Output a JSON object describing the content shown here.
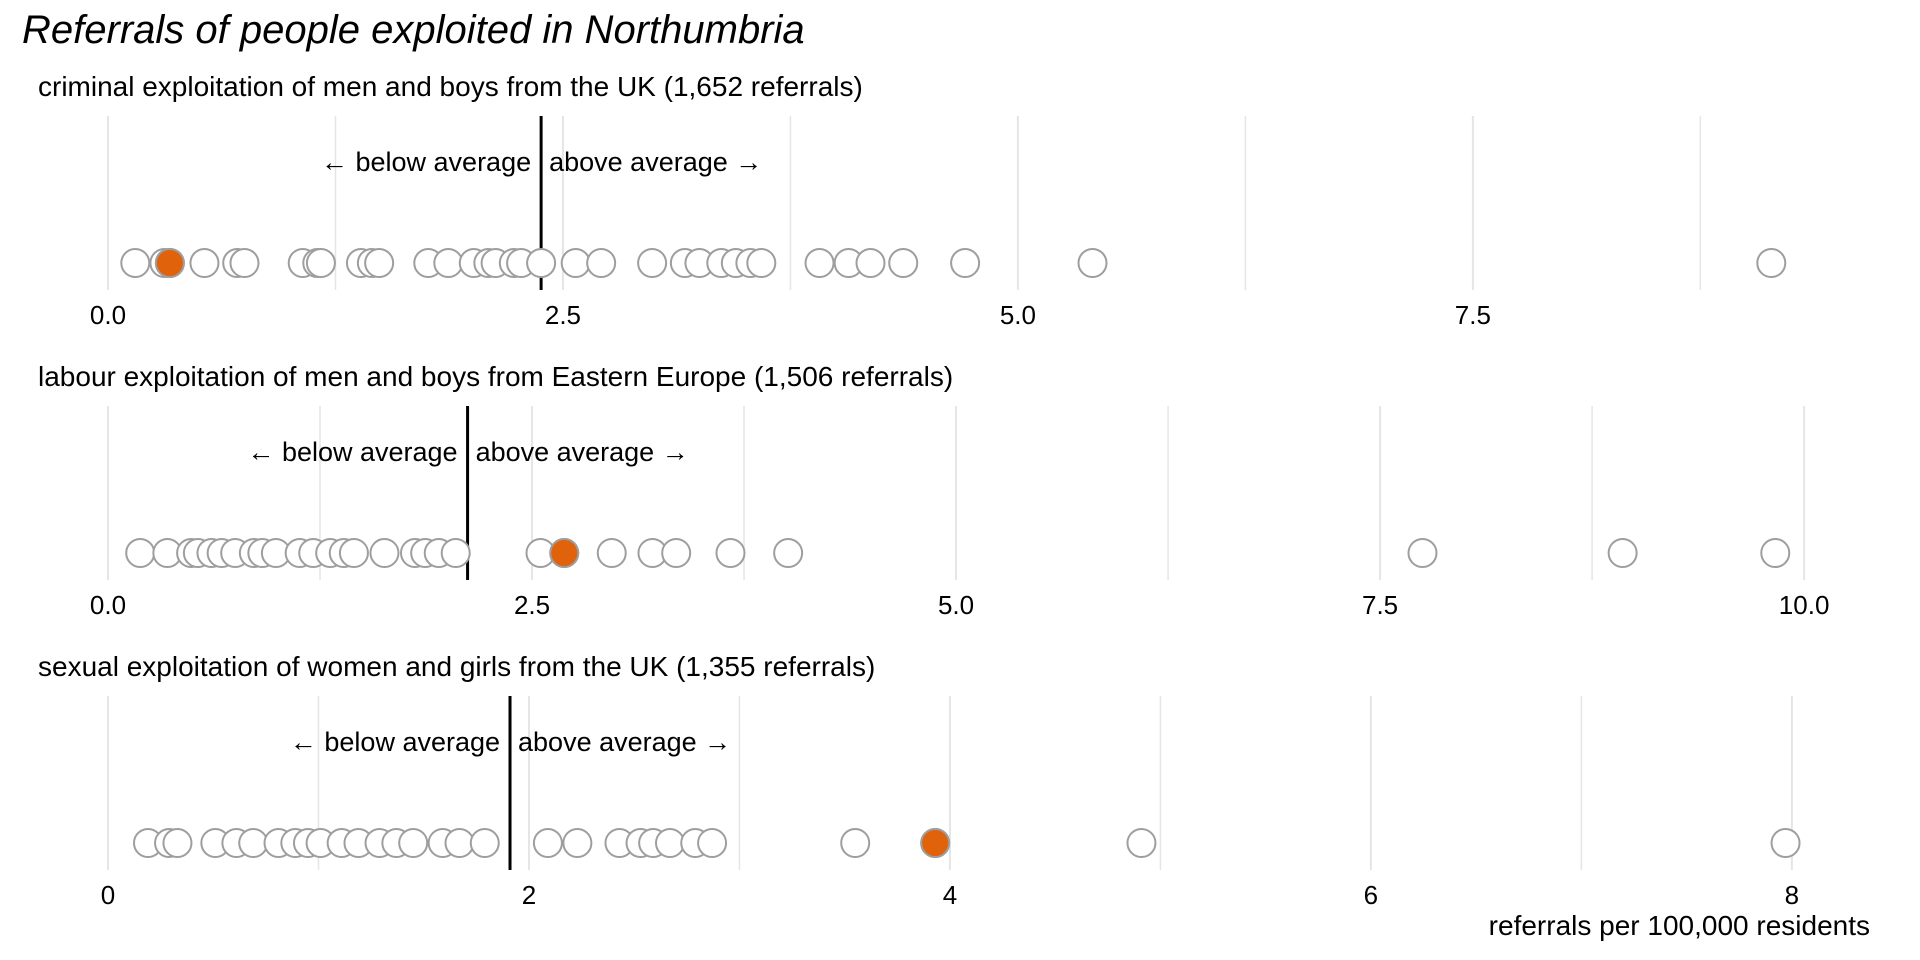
{
  "chart_data": {
    "type": "strip",
    "title": "Referrals of people exploited in Northumbria",
    "xlabel": "referrals per 100,000 residents",
    "highlight_color": "#e0620a",
    "point_color": "#ffffff",
    "point_stroke": "#9e9e9e",
    "mean_line_color": "#000000",
    "grid_color": "#e5e5e5",
    "below_label": "← below average",
    "above_label": "above average →",
    "panels": [
      {
        "subtitle": "criminal exploitation of men and boys from the UK (1,652 referrals)",
        "xlim": [
          0,
          9.6
        ],
        "ticks": [
          0,
          2.5,
          5,
          7.5
        ],
        "tick_labels": [
          "0.0",
          "2.5",
          "5.0",
          "7.5"
        ],
        "minor_ticks": [
          1.25,
          3.75,
          6.25,
          8.75
        ],
        "average": 2.38,
        "highlight": 0.34,
        "values": [
          0.15,
          0.31,
          0.34,
          0.53,
          0.71,
          0.75,
          1.07,
          1.15,
          1.17,
          1.39,
          1.45,
          1.49,
          1.76,
          1.87,
          2.01,
          2.09,
          2.13,
          2.23,
          2.27,
          2.38,
          2.57,
          2.71,
          2.99,
          3.17,
          3.25,
          3.37,
          3.45,
          3.53,
          3.59,
          3.91,
          4.07,
          4.19,
          4.37,
          4.71,
          5.41,
          9.14
        ]
      },
      {
        "subtitle": "labour exploitation of men and boys from Eastern Europe (1,506 referrals)",
        "xlim": [
          0,
          10.3
        ],
        "ticks": [
          0,
          2.5,
          5,
          7.5,
          10
        ],
        "tick_labels": [
          "0.0",
          "2.5",
          "5.0",
          "7.5",
          "10.0"
        ],
        "minor_ticks": [
          1.25,
          3.75,
          6.25,
          8.75
        ],
        "average": 2.12,
        "highlight": 2.69,
        "values": [
          0.19,
          0.35,
          0.49,
          0.53,
          0.61,
          0.67,
          0.75,
          0.86,
          0.91,
          0.99,
          1.13,
          1.21,
          1.31,
          1.39,
          1.45,
          1.63,
          1.81,
          1.87,
          1.95,
          2.05,
          2.55,
          2.69,
          2.97,
          3.21,
          3.35,
          3.67,
          4.01,
          7.75,
          8.93,
          9.83
        ]
      },
      {
        "subtitle": "sexual exploitation of women and girls from the UK (1,355 referrals)",
        "xlim": [
          0,
          8.3
        ],
        "ticks": [
          0,
          2,
          4,
          6,
          8
        ],
        "tick_labels": [
          "0",
          "2",
          "4",
          "6",
          "8"
        ],
        "minor_ticks": [
          1,
          3,
          5,
          7
        ],
        "average": 1.91,
        "highlight": 3.93,
        "values": [
          0.19,
          0.29,
          0.33,
          0.51,
          0.61,
          0.69,
          0.81,
          0.89,
          0.95,
          1.01,
          1.11,
          1.19,
          1.29,
          1.37,
          1.45,
          1.59,
          1.67,
          1.79,
          2.09,
          2.23,
          2.43,
          2.53,
          2.59,
          2.67,
          2.79,
          2.87,
          3.55,
          3.93,
          4.91,
          7.97
        ]
      }
    ]
  }
}
